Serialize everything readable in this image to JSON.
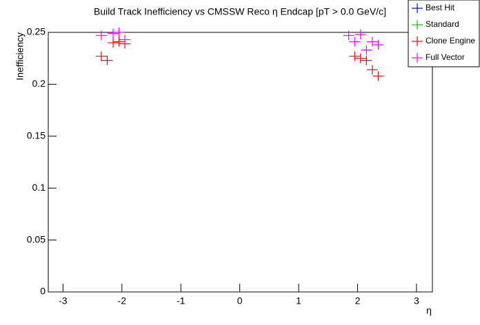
{
  "chart_data": {
    "type": "scatter",
    "title": "Build Track Inefficiency vs CMSSW Reco η Endcap [pT > 0.0 GeV/c]",
    "x_label": "η",
    "y_label": "Inefficiency",
    "x": [
      -2.35,
      -2.25,
      -2.15,
      -2.05,
      -1.95,
      1.85,
      1.95,
      2.05,
      2.15,
      2.25,
      2.35
    ],
    "series": [
      {
        "name": "Best Hit",
        "color": "#0000ff",
        "values": [
          null,
          null,
          null,
          null,
          null,
          null,
          null,
          null,
          null,
          null,
          null
        ]
      },
      {
        "name": "Standard",
        "color": "#00cc00",
        "values": [
          null,
          null,
          null,
          null,
          null,
          null,
          null,
          null,
          null,
          null,
          null
        ]
      },
      {
        "name": "Clone Engine",
        "color": "#ff0000",
        "values": [
          0.227,
          0.223,
          0.24,
          0.241,
          0.239,
          null,
          0.227,
          0.225,
          0.223,
          0.214,
          0.208
        ]
      },
      {
        "name": "Full Vector",
        "color": "#ff00ff",
        "values": [
          0.247,
          null,
          0.249,
          0.25,
          0.243,
          0.247,
          0.241,
          0.248,
          0.233,
          0.241,
          0.238
        ]
      }
    ],
    "xlim": [
      -3.25,
      3.27
    ],
    "ylim": [
      0,
      0.25
    ],
    "xticks": [
      -3,
      -2,
      -1,
      0,
      1,
      2,
      3
    ],
    "yticks": [
      0,
      0.05,
      0.1,
      0.15,
      0.2,
      0.25
    ],
    "legend": "top-right",
    "grid": false
  }
}
